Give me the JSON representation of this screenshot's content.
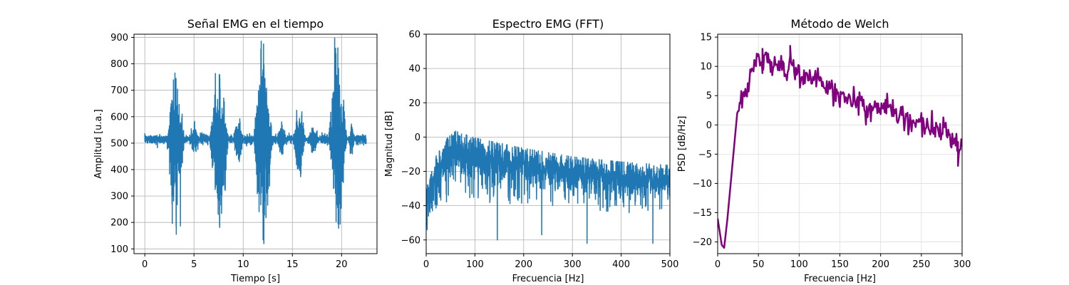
{
  "chart_data": [
    {
      "type": "line",
      "title": "Señal EMG en el tiempo",
      "xlabel": "Tiempo [s]",
      "ylabel": "Amplitud [u.a.]",
      "xlim": [
        -1.1,
        23.6
      ],
      "ylim": [
        82,
        912
      ],
      "xticks": [
        0,
        5,
        10,
        15,
        20
      ],
      "yticks": [
        100,
        200,
        300,
        400,
        500,
        600,
        700,
        800,
        900
      ],
      "grid": true,
      "series": [
        {
          "color": "#1f77b4",
          "baseline": 515,
          "base_amplitude": 8,
          "bursts": [
            {
              "t_start": 2.2,
              "t_end": 4.1,
              "max": 745,
              "min": 155
            },
            {
              "t_start": 6.5,
              "t_end": 8.6,
              "max": 760,
              "min": 190
            },
            {
              "t_start": 11.0,
              "t_end": 13.1,
              "max": 875,
              "min": 120
            },
            {
              "t_start": 18.6,
              "t_end": 20.6,
              "max": 860,
              "min": 195
            }
          ],
          "minor_bursts": [
            {
              "t_start": 4.4,
              "t_end": 5.6,
              "max": 565,
              "min": 455
            },
            {
              "t_start": 8.9,
              "t_end": 10.1,
              "max": 610,
              "min": 425
            },
            {
              "t_start": 13.4,
              "t_end": 14.4,
              "max": 585,
              "min": 440
            },
            {
              "t_start": 15.0,
              "t_end": 16.4,
              "max": 640,
              "min": 350
            },
            {
              "t_start": 16.4,
              "t_end": 17.8,
              "max": 565,
              "min": 455
            },
            {
              "t_start": 20.6,
              "t_end": 21.4,
              "max": 575,
              "min": 450
            }
          ],
          "t_start": 0,
          "t_end": 22.5
        }
      ]
    },
    {
      "type": "line",
      "title": "Espectro EMG (FFT)",
      "xlabel": "Frecuencia [Hz]",
      "ylabel": "Magnitud [dB]",
      "xlim": [
        0,
        500
      ],
      "ylim": [
        -68,
        60
      ],
      "xticks": [
        0,
        100,
        200,
        300,
        400,
        500
      ],
      "yticks": [
        -60,
        -40,
        -20,
        0,
        20,
        40,
        60
      ],
      "grid": true,
      "series": [
        {
          "color": "#1f77b4",
          "envelope_upper": [
            [
              0,
              -30
            ],
            [
              10,
              -23
            ],
            [
              25,
              -8
            ],
            [
              40,
              -3
            ],
            [
              60,
              2
            ],
            [
              100,
              -2
            ],
            [
              200,
              -8
            ],
            [
              300,
              -13
            ],
            [
              400,
              -16
            ],
            [
              500,
              -18
            ]
          ],
          "envelope_lower": [
            [
              0,
              -52
            ],
            [
              20,
              -42
            ],
            [
              60,
              -38
            ],
            [
              100,
              -39
            ],
            [
              200,
              -40
            ],
            [
              300,
              -42
            ],
            [
              400,
              -45
            ],
            [
              500,
              -43
            ]
          ],
          "deep_dips": [
            [
              2,
              -54
            ],
            [
              146,
              -60
            ],
            [
              237,
              -57
            ],
            [
              330,
              -62
            ],
            [
              465,
              -62
            ]
          ]
        }
      ]
    },
    {
      "type": "line",
      "title": "Método de Welch",
      "xlabel": "Frecuencia [Hz]",
      "ylabel": "PSD [dB/Hz]",
      "xlim": [
        0,
        300
      ],
      "ylim": [
        -22,
        15.5
      ],
      "xticks": [
        0,
        50,
        100,
        150,
        200,
        250,
        300
      ],
      "yticks": [
        -20,
        -15,
        -10,
        -5,
        0,
        5,
        10,
        15
      ],
      "grid": true,
      "series": [
        {
          "color": "#800080",
          "trend": [
            [
              0,
              -16
            ],
            [
              5,
              -20.5
            ],
            [
              8,
              -21
            ],
            [
              12,
              -16
            ],
            [
              16,
              -10
            ],
            [
              20,
              -4
            ],
            [
              24,
              2
            ],
            [
              30,
              4
            ],
            [
              38,
              7
            ],
            [
              45,
              10
            ],
            [
              50,
              11
            ],
            [
              60,
              11.5
            ],
            [
              70,
              10
            ],
            [
              80,
              9.5
            ],
            [
              88,
              10
            ],
            [
              100,
              8.5
            ],
            [
              120,
              7.5
            ],
            [
              140,
              5.5
            ],
            [
              160,
              5
            ],
            [
              180,
              3.5
            ],
            [
              200,
              3
            ],
            [
              220,
              2
            ],
            [
              240,
              0.5
            ],
            [
              260,
              -0.5
            ],
            [
              280,
              -1.5
            ],
            [
              295,
              -3
            ],
            [
              300,
              -3
            ]
          ],
          "notable_points": [
            [
              89,
              13.5
            ],
            [
              55,
              13
            ],
            [
              295,
              -7
            ]
          ]
        }
      ]
    }
  ]
}
